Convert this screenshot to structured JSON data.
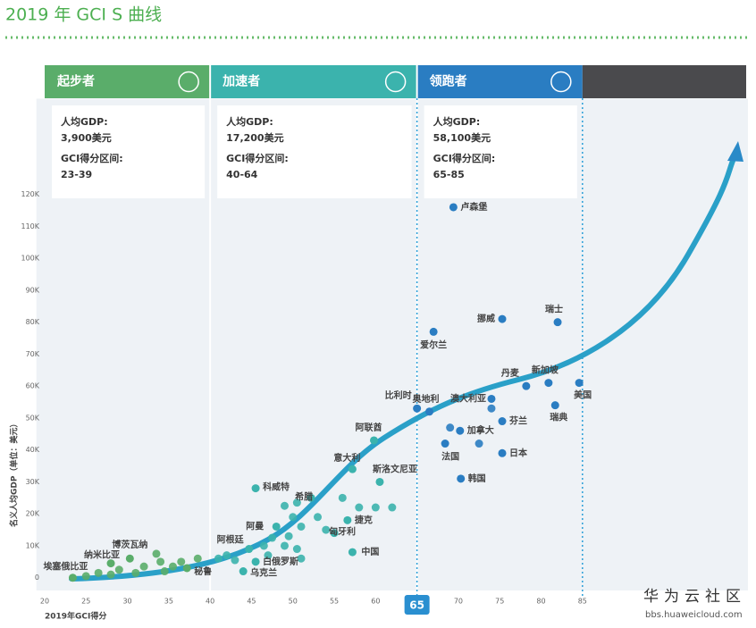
{
  "chart_data": {
    "type": "scatter",
    "title": "2019 年 GCI S 曲线",
    "x_label": "2019年GCI得分",
    "y_label": "名义人均GDP（单位：美元）",
    "watermark": "华为云社区",
    "watermark_url": "bbs.huaweicloud.com",
    "xlim": [
      19,
      105
    ],
    "ylim": [
      -4000,
      150000
    ],
    "xticks": [
      20,
      25,
      30,
      35,
      40,
      45,
      50,
      55,
      60,
      65,
      70,
      75,
      80,
      85
    ],
    "highlight_xtick": 65,
    "yticks": [
      {
        "value": 0,
        "label": "0"
      },
      {
        "value": 10000,
        "label": "10K"
      },
      {
        "value": 20000,
        "label": "20K"
      },
      {
        "value": 30000,
        "label": "30K"
      },
      {
        "value": 40000,
        "label": "40K"
      },
      {
        "value": 50000,
        "label": "50K"
      },
      {
        "value": 60000,
        "label": "60K"
      },
      {
        "value": 70000,
        "label": "70K"
      },
      {
        "value": 80000,
        "label": "80K"
      },
      {
        "value": 90000,
        "label": "90K"
      },
      {
        "value": 100000,
        "label": "100K"
      },
      {
        "value": 110000,
        "label": "110K"
      },
      {
        "value": 120000,
        "label": "120K"
      }
    ],
    "stages": [
      {
        "name": "起步者",
        "color": "#5aad6a",
        "x_end": 40,
        "gdp_label": "人均GDP:",
        "gdp": "3,900美元",
        "range_label": "GCI得分区间:",
        "range": "23-39"
      },
      {
        "name": "加速者",
        "color": "#3bb3ad",
        "x_end": 65,
        "gdp_label": "人均GDP:",
        "gdp": "17,200美元",
        "range_label": "GCI得分区间:",
        "range": "40-64"
      },
      {
        "name": "领跑者",
        "color": "#2a7dc2",
        "x_end": 85,
        "gdp_label": "人均GDP:",
        "gdp": "58,100美元",
        "range_label": "GCI得分区间:",
        "range": "65-85"
      }
    ],
    "points": [
      {
        "name": "卢森堡",
        "x": 69.4,
        "y": 116000
      },
      {
        "name": "瑞士",
        "x": 82,
        "y": 80000
      },
      {
        "name": "挪威",
        "x": 75.3,
        "y": 81000
      },
      {
        "name": "爱尔兰",
        "x": 67,
        "y": 77000
      },
      {
        "name": "新加坡",
        "x": 80.9,
        "y": 61000
      },
      {
        "name": "美国",
        "x": 84.6,
        "y": 61000
      },
      {
        "name": "丹麦",
        "x": 78.2,
        "y": 60000
      },
      {
        "name": "澳大利亚",
        "x": 74,
        "y": 56000
      },
      {
        "name": "瑞典",
        "x": 81.7,
        "y": 54000
      },
      {
        "name": "奥地利",
        "x": 66.5,
        "y": 52000
      },
      {
        "name": "比利时",
        "x": 65,
        "y": 53000
      },
      {
        "name": "芬兰",
        "x": 75.3,
        "y": 49000
      },
      {
        "name": "加拿大",
        "x": 70.2,
        "y": 46000
      },
      {
        "name": "法国",
        "x": 68.4,
        "y": 42000
      },
      {
        "name": "日本",
        "x": 75.3,
        "y": 39000
      },
      {
        "name": "韩国",
        "x": 70.3,
        "y": 31000
      },
      {
        "name": "阿联酋",
        "x": 59.8,
        "y": 43000
      },
      {
        "name": "意大利",
        "x": 57.2,
        "y": 34000
      },
      {
        "name": "科威特",
        "x": 45.5,
        "y": 28000
      },
      {
        "name": "希腊",
        "x": 52.2,
        "y": 25000
      },
      {
        "name": "斯洛文尼亚",
        "x": 60.5,
        "y": 30000
      },
      {
        "name": "捷克",
        "x": 56.6,
        "y": 18000
      },
      {
        "name": "匈牙利",
        "x": 55,
        "y": 14000
      },
      {
        "name": "中国",
        "x": 57.2,
        "y": 8000
      },
      {
        "name": "阿曼",
        "x": 48,
        "y": 16000
      },
      {
        "name": "阿根廷",
        "x": 44.7,
        "y": 9000
      },
      {
        "name": "白俄罗斯",
        "x": 45.5,
        "y": 5000
      },
      {
        "name": "乌克兰",
        "x": 44,
        "y": 2000
      },
      {
        "name": "秘鲁",
        "x": 37.2,
        "y": 3000
      },
      {
        "name": "博茨瓦纳",
        "x": 30.3,
        "y": 6000
      },
      {
        "name": "纳米比亚",
        "x": 28,
        "y": 4500
      },
      {
        "name": "埃塞俄比亚",
        "x": 23.4,
        "y": 0
      }
    ],
    "other_points": [
      {
        "x": 25,
        "y": 500
      },
      {
        "x": 26.5,
        "y": 1500
      },
      {
        "x": 28,
        "y": 1000
      },
      {
        "x": 29,
        "y": 2500
      },
      {
        "x": 31,
        "y": 1500
      },
      {
        "x": 32,
        "y": 3500
      },
      {
        "x": 33.5,
        "y": 7500
      },
      {
        "x": 34,
        "y": 5000
      },
      {
        "x": 34.5,
        "y": 2000
      },
      {
        "x": 35.5,
        "y": 3500
      },
      {
        "x": 36.5,
        "y": 5000
      },
      {
        "x": 38.5,
        "y": 6000
      },
      {
        "x": 41,
        "y": 6000
      },
      {
        "x": 42,
        "y": 7000
      },
      {
        "x": 43,
        "y": 5500
      },
      {
        "x": 46.5,
        "y": 10000
      },
      {
        "x": 47.5,
        "y": 12500
      },
      {
        "x": 49,
        "y": 10000
      },
      {
        "x": 49.5,
        "y": 13000
      },
      {
        "x": 50,
        "y": 19000
      },
      {
        "x": 50.5,
        "y": 9000
      },
      {
        "x": 51,
        "y": 16000
      },
      {
        "x": 51,
        "y": 6000
      },
      {
        "x": 53,
        "y": 19000
      },
      {
        "x": 54,
        "y": 15000
      },
      {
        "x": 56,
        "y": 25000
      },
      {
        "x": 58,
        "y": 22000
      },
      {
        "x": 60,
        "y": 22000
      },
      {
        "x": 62,
        "y": 22000
      },
      {
        "x": 49,
        "y": 22500
      },
      {
        "x": 50.5,
        "y": 23500
      },
      {
        "x": 47,
        "y": 7000
      },
      {
        "x": 72.5,
        "y": 42000
      },
      {
        "x": 74,
        "y": 53000
      },
      {
        "x": 69,
        "y": 47000
      }
    ]
  }
}
